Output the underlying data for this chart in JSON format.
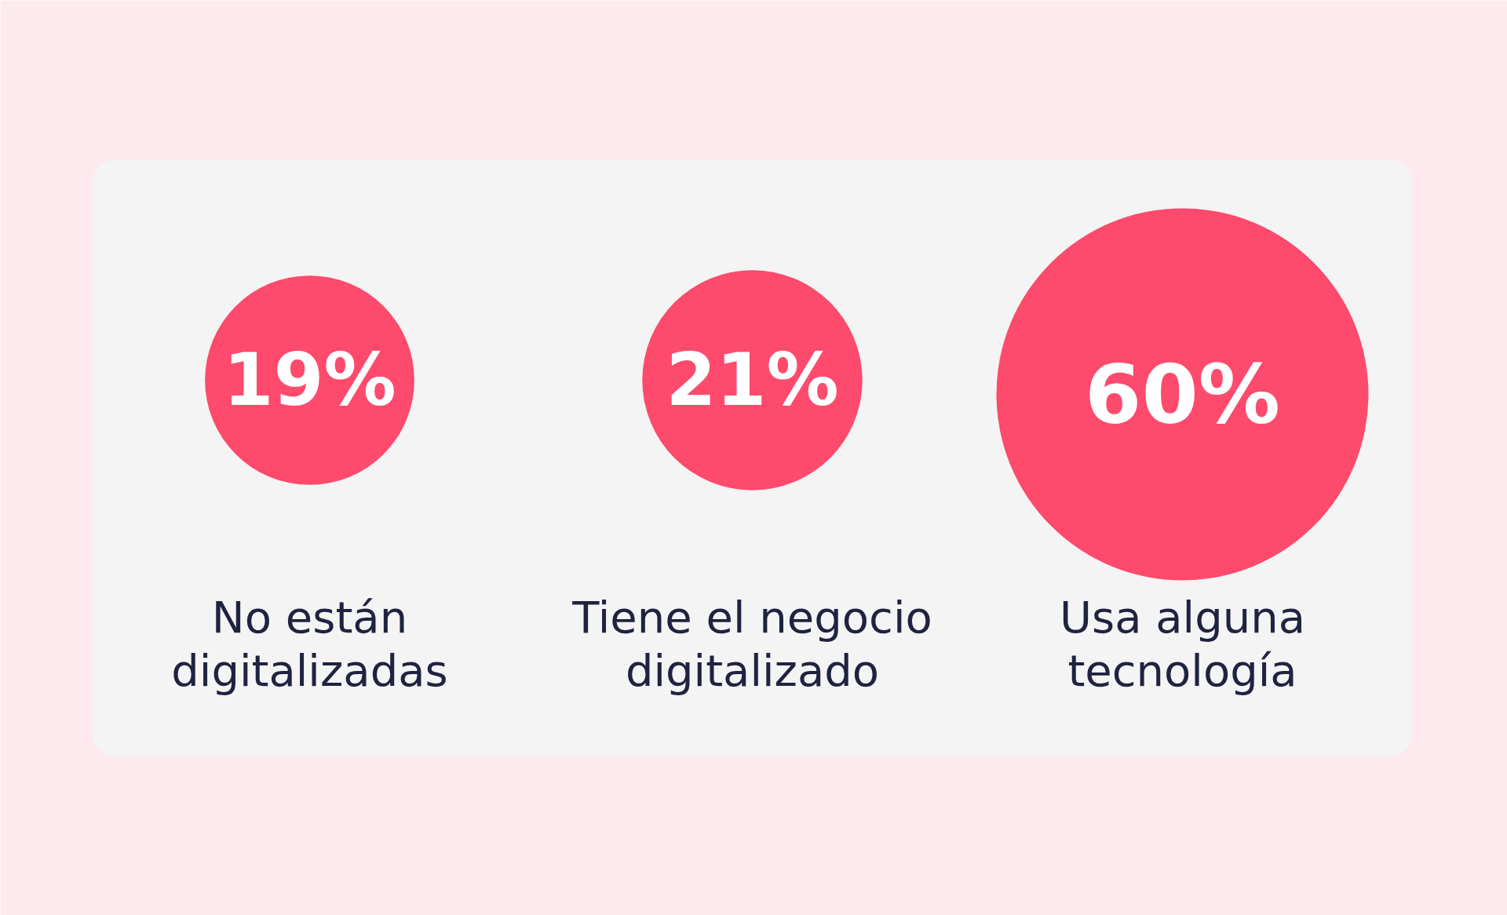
{
  "chart_data": {
    "type": "other",
    "categories": [
      "No están digitalizadas",
      "Tiene el negocio digitalizado",
      "Usa alguna tecnología"
    ],
    "values": [
      19,
      21,
      60
    ],
    "colors": [
      "#fe4a6c",
      "#fe4a6c",
      "#fe4a6c"
    ],
    "value_labels": [
      "19%",
      "21%",
      "60%"
    ]
  }
}
